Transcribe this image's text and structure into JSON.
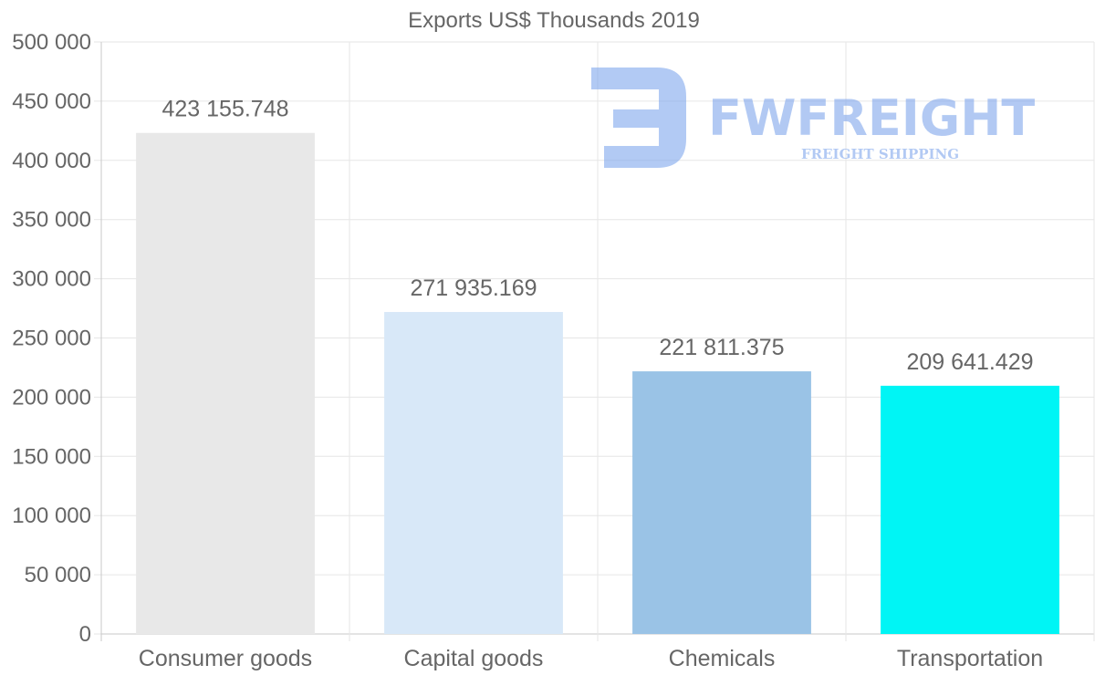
{
  "chart_data": {
    "type": "bar",
    "title": "Exports US$ Thousands 2019",
    "categories": [
      "Consumer goods",
      "Capital goods",
      "Chemicals",
      "Transportation"
    ],
    "values": [
      423155.748,
      271935.169,
      221811.375,
      209641.429
    ],
    "value_labels": [
      "423 155.748",
      "271 935.169",
      "221 811.375",
      "209 641.429"
    ],
    "colors": [
      "#e8e8e8",
      "#d8e8f8",
      "#9ac3e6",
      "#00f5f5"
    ],
    "ylim": [
      0,
      500000
    ],
    "yticks": [
      0,
      50000,
      100000,
      150000,
      200000,
      250000,
      300000,
      350000,
      400000,
      450000,
      500000
    ],
    "ytick_labels": [
      "0",
      "50 000",
      "100 000",
      "150 000",
      "200 000",
      "250 000",
      "300 000",
      "350 000",
      "400 000",
      "450 000",
      "500 000"
    ],
    "xlabel": "",
    "ylabel": "",
    "grid": true,
    "legend": "none"
  },
  "watermark": {
    "brand": "FWFREIGHT",
    "tagline": "FREIGHT SHIPPING",
    "color": "#7fa6ec"
  }
}
